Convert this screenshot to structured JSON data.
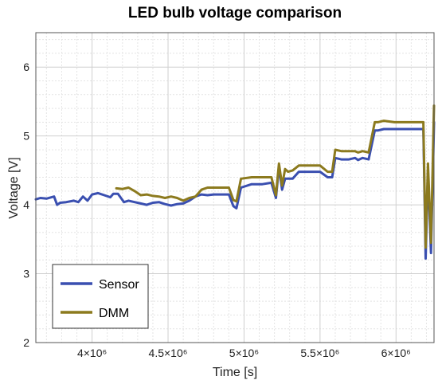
{
  "chart_data": {
    "type": "line",
    "title": "LED bulb voltage comparison",
    "xlabel": "Time [s]",
    "ylabel": "Voltage [V]",
    "xlim": [
      3630000,
      6250000
    ],
    "ylim": [
      2,
      6.5
    ],
    "xticks": [
      4000000,
      4500000,
      5000000,
      5500000,
      6000000
    ],
    "xtick_labels": [
      "4×10⁶",
      "4.5×10⁶",
      "5×10⁶",
      "5.5×10⁶",
      "6×10⁶"
    ],
    "yticks": [
      2,
      3,
      4,
      5,
      6
    ],
    "ytick_labels": [
      "2",
      "3",
      "4",
      "5",
      "6"
    ],
    "grid": true,
    "minor_grid": true,
    "legend_position": "bottom-left",
    "series": [
      {
        "name": "Sensor",
        "color": "#3a4fb0",
        "x": [
          3630000,
          3660000,
          3700000,
          3750000,
          3770000,
          3790000,
          3830000,
          3880000,
          3910000,
          3940000,
          3970000,
          4000000,
          4040000,
          4080000,
          4120000,
          4140000,
          4170000,
          4210000,
          4240000,
          4280000,
          4320000,
          4360000,
          4400000,
          4440000,
          4480000,
          4520000,
          4560000,
          4600000,
          4640000,
          4680000,
          4720000,
          4760000,
          4800000,
          4860000,
          4900000,
          4930000,
          4950000,
          4980000,
          5050000,
          5120000,
          5180000,
          5210000,
          5230000,
          5250000,
          5270000,
          5290000,
          5320000,
          5360000,
          5400000,
          5460000,
          5500000,
          5550000,
          5580000,
          5600000,
          5640000,
          5690000,
          5730000,
          5750000,
          5780000,
          5820000,
          5860000,
          5880000,
          5920000,
          5990000,
          6050000,
          6120000,
          6180000,
          6195000,
          6210000,
          6230000,
          6250000
        ],
        "y": [
          4.08,
          4.1,
          4.09,
          4.12,
          4.0,
          4.03,
          4.04,
          4.06,
          4.04,
          4.12,
          4.06,
          4.15,
          4.17,
          4.14,
          4.11,
          4.16,
          4.16,
          4.04,
          4.06,
          4.04,
          4.02,
          4.0,
          4.03,
          4.04,
          4.01,
          3.99,
          4.01,
          4.02,
          4.06,
          4.12,
          4.15,
          4.14,
          4.15,
          4.15,
          4.15,
          3.98,
          3.95,
          4.25,
          4.3,
          4.3,
          4.32,
          4.1,
          4.55,
          4.22,
          4.38,
          4.38,
          4.38,
          4.48,
          4.48,
          4.48,
          4.48,
          4.4,
          4.4,
          4.68,
          4.66,
          4.66,
          4.68,
          4.65,
          4.68,
          4.66,
          5.08,
          5.08,
          5.1,
          5.1,
          5.1,
          5.1,
          5.1,
          3.22,
          4.5,
          3.3,
          5.2
        ]
      },
      {
        "name": "DMM",
        "color": "#8c7a1e",
        "x": [
          4160000,
          4200000,
          4240000,
          4280000,
          4320000,
          4360000,
          4400000,
          4440000,
          4480000,
          4520000,
          4560000,
          4600000,
          4640000,
          4680000,
          4720000,
          4760000,
          4800000,
          4860000,
          4900000,
          4930000,
          4950000,
          4980000,
          5050000,
          5120000,
          5180000,
          5210000,
          5230000,
          5250000,
          5270000,
          5290000,
          5320000,
          5360000,
          5400000,
          5460000,
          5500000,
          5550000,
          5580000,
          5600000,
          5640000,
          5690000,
          5730000,
          5750000,
          5780000,
          5820000,
          5860000,
          5880000,
          5920000,
          5990000,
          6050000,
          6120000,
          6180000,
          6195000,
          6210000,
          6230000,
          6250000
        ],
        "y": [
          4.24,
          4.23,
          4.25,
          4.2,
          4.14,
          4.15,
          4.13,
          4.12,
          4.1,
          4.12,
          4.1,
          4.06,
          4.1,
          4.12,
          4.22,
          4.25,
          4.25,
          4.25,
          4.25,
          4.07,
          4.05,
          4.38,
          4.4,
          4.4,
          4.4,
          4.14,
          4.6,
          4.28,
          4.52,
          4.48,
          4.5,
          4.57,
          4.57,
          4.57,
          4.57,
          4.48,
          4.48,
          4.8,
          4.78,
          4.78,
          4.78,
          4.76,
          4.78,
          4.76,
          5.2,
          5.2,
          5.22,
          5.2,
          5.2,
          5.2,
          5.2,
          3.38,
          4.6,
          3.45,
          5.44
        ]
      }
    ]
  }
}
